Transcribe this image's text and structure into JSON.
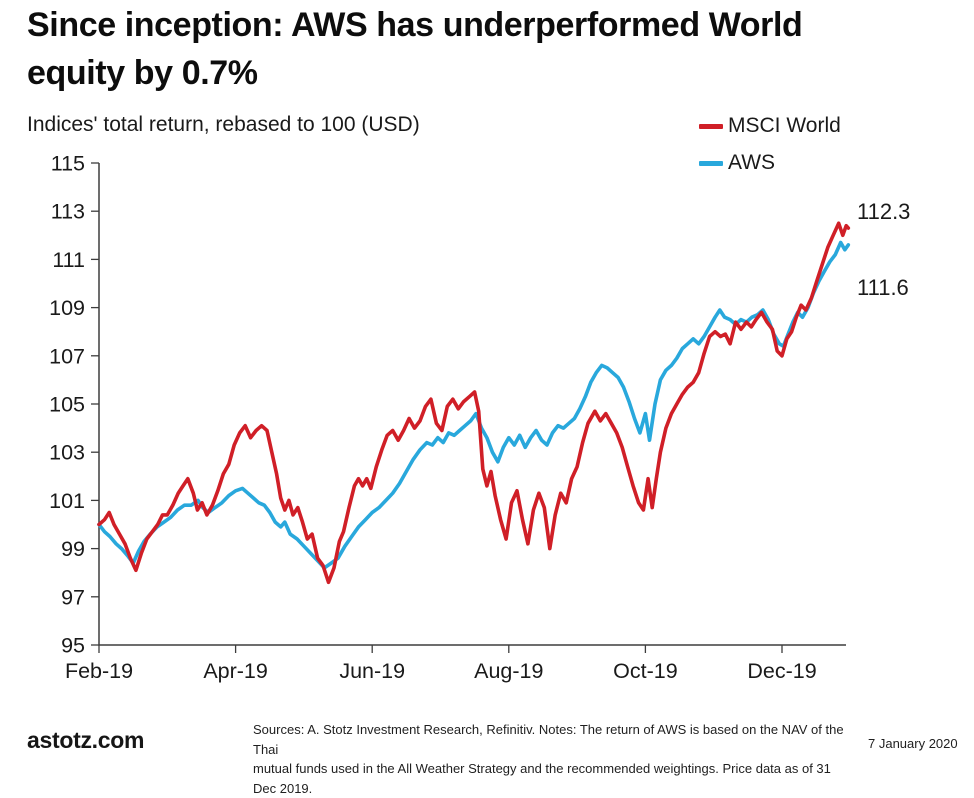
{
  "header": {
    "title_line1": "Since inception: AWS has underperformed World",
    "title_line2": "equity by 0.7%",
    "subtitle": "Indices' total return, rebased to 100 (USD)"
  },
  "legend": [
    {
      "label": "MSCI World",
      "color": "#d01f27"
    },
    {
      "label": "AWS",
      "color": "#29a8dc"
    }
  ],
  "chart_data": {
    "type": "line",
    "title": "Indices' total return, rebased to 100 (USD)",
    "grid": false,
    "legend_position": "top-right",
    "x_axis": {
      "unit": "months since Feb-2019",
      "tick_labels": [
        "Feb-19",
        "Apr-19",
        "Jun-19",
        "Aug-19",
        "Oct-19",
        "Dec-19"
      ],
      "tick_positions": [
        0,
        2,
        4,
        6,
        8,
        10
      ],
      "range": [
        0,
        10.97
      ]
    },
    "y_axis": {
      "ticks": [
        115,
        113,
        111,
        109,
        107,
        105,
        103,
        101,
        99,
        97,
        95
      ],
      "range": [
        95,
        115
      ]
    },
    "series": [
      {
        "name": "MSCI World",
        "color": "#d01f27",
        "end_label": "112.3",
        "final_value": 112.3,
        "points": [
          [
            0.0,
            100.0
          ],
          [
            0.08,
            100.2
          ],
          [
            0.15,
            100.5
          ],
          [
            0.22,
            100.0
          ],
          [
            0.3,
            99.6
          ],
          [
            0.38,
            99.2
          ],
          [
            0.46,
            98.6
          ],
          [
            0.54,
            98.1
          ],
          [
            0.62,
            98.8
          ],
          [
            0.7,
            99.4
          ],
          [
            0.78,
            99.7
          ],
          [
            0.86,
            100.0
          ],
          [
            0.93,
            100.4
          ],
          [
            1.0,
            100.4
          ],
          [
            1.08,
            100.8
          ],
          [
            1.16,
            101.3
          ],
          [
            1.23,
            101.6
          ],
          [
            1.3,
            101.9
          ],
          [
            1.38,
            101.3
          ],
          [
            1.44,
            100.6
          ],
          [
            1.51,
            100.9
          ],
          [
            1.58,
            100.4
          ],
          [
            1.66,
            100.8
          ],
          [
            1.74,
            101.4
          ],
          [
            1.82,
            102.1
          ],
          [
            1.9,
            102.5
          ],
          [
            1.98,
            103.3
          ],
          [
            2.06,
            103.8
          ],
          [
            2.14,
            104.1
          ],
          [
            2.22,
            103.6
          ],
          [
            2.3,
            103.9
          ],
          [
            2.38,
            104.1
          ],
          [
            2.46,
            103.9
          ],
          [
            2.53,
            103.0
          ],
          [
            2.6,
            102.1
          ],
          [
            2.66,
            101.1
          ],
          [
            2.72,
            100.6
          ],
          [
            2.78,
            101.0
          ],
          [
            2.84,
            100.4
          ],
          [
            2.91,
            100.7
          ],
          [
            2.98,
            100.1
          ],
          [
            3.05,
            99.4
          ],
          [
            3.12,
            99.6
          ],
          [
            3.2,
            98.6
          ],
          [
            3.28,
            98.3
          ],
          [
            3.36,
            97.6
          ],
          [
            3.44,
            98.2
          ],
          [
            3.52,
            99.3
          ],
          [
            3.58,
            99.7
          ],
          [
            3.66,
            100.7
          ],
          [
            3.74,
            101.6
          ],
          [
            3.8,
            101.9
          ],
          [
            3.86,
            101.6
          ],
          [
            3.92,
            101.9
          ],
          [
            3.98,
            101.5
          ],
          [
            4.06,
            102.4
          ],
          [
            4.14,
            103.1
          ],
          [
            4.22,
            103.7
          ],
          [
            4.3,
            103.9
          ],
          [
            4.38,
            103.5
          ],
          [
            4.46,
            103.9
          ],
          [
            4.54,
            104.4
          ],
          [
            4.62,
            104.0
          ],
          [
            4.7,
            104.3
          ],
          [
            4.78,
            104.9
          ],
          [
            4.86,
            105.2
          ],
          [
            4.94,
            104.2
          ],
          [
            5.02,
            103.9
          ],
          [
            5.1,
            104.9
          ],
          [
            5.18,
            105.2
          ],
          [
            5.26,
            104.8
          ],
          [
            5.34,
            105.1
          ],
          [
            5.42,
            105.3
          ],
          [
            5.5,
            105.5
          ],
          [
            5.56,
            104.7
          ],
          [
            5.62,
            102.3
          ],
          [
            5.68,
            101.6
          ],
          [
            5.74,
            102.2
          ],
          [
            5.8,
            101.2
          ],
          [
            5.88,
            100.2
          ],
          [
            5.96,
            99.4
          ],
          [
            6.04,
            100.9
          ],
          [
            6.12,
            101.4
          ],
          [
            6.2,
            100.2
          ],
          [
            6.28,
            99.2
          ],
          [
            6.36,
            100.6
          ],
          [
            6.44,
            101.3
          ],
          [
            6.52,
            100.7
          ],
          [
            6.6,
            99.0
          ],
          [
            6.68,
            100.4
          ],
          [
            6.76,
            101.3
          ],
          [
            6.84,
            100.9
          ],
          [
            6.92,
            101.9
          ],
          [
            7.0,
            102.4
          ],
          [
            7.08,
            103.4
          ],
          [
            7.16,
            104.2
          ],
          [
            7.26,
            104.7
          ],
          [
            7.34,
            104.3
          ],
          [
            7.42,
            104.6
          ],
          [
            7.5,
            104.2
          ],
          [
            7.58,
            103.8
          ],
          [
            7.66,
            103.2
          ],
          [
            7.74,
            102.4
          ],
          [
            7.82,
            101.6
          ],
          [
            7.9,
            100.9
          ],
          [
            7.97,
            100.6
          ],
          [
            8.04,
            101.9
          ],
          [
            8.1,
            100.7
          ],
          [
            8.16,
            101.9
          ],
          [
            8.22,
            103.0
          ],
          [
            8.3,
            104.0
          ],
          [
            8.38,
            104.6
          ],
          [
            8.46,
            105.0
          ],
          [
            8.54,
            105.4
          ],
          [
            8.62,
            105.7
          ],
          [
            8.7,
            105.9
          ],
          [
            8.78,
            106.3
          ],
          [
            8.86,
            107.1
          ],
          [
            8.94,
            107.8
          ],
          [
            9.02,
            108.0
          ],
          [
            9.1,
            107.8
          ],
          [
            9.17,
            107.9
          ],
          [
            9.24,
            107.5
          ],
          [
            9.32,
            108.4
          ],
          [
            9.4,
            108.1
          ],
          [
            9.48,
            108.4
          ],
          [
            9.55,
            108.2
          ],
          [
            9.62,
            108.5
          ],
          [
            9.7,
            108.8
          ],
          [
            9.78,
            108.4
          ],
          [
            9.86,
            108.1
          ],
          [
            9.93,
            107.2
          ],
          [
            10.0,
            107.0
          ],
          [
            10.07,
            107.7
          ],
          [
            10.14,
            108.0
          ],
          [
            10.21,
            108.6
          ],
          [
            10.28,
            109.1
          ],
          [
            10.35,
            108.9
          ],
          [
            10.43,
            109.4
          ],
          [
            10.51,
            110.1
          ],
          [
            10.59,
            110.8
          ],
          [
            10.67,
            111.5
          ],
          [
            10.75,
            112.0
          ],
          [
            10.83,
            112.5
          ],
          [
            10.89,
            112.0
          ],
          [
            10.94,
            112.4
          ],
          [
            10.97,
            112.3
          ]
        ]
      },
      {
        "name": "AWS",
        "color": "#29a8dc",
        "end_label": "111.6",
        "final_value": 111.6,
        "points": [
          [
            0.0,
            100.0
          ],
          [
            0.08,
            99.7
          ],
          [
            0.16,
            99.5
          ],
          [
            0.25,
            99.2
          ],
          [
            0.33,
            99.0
          ],
          [
            0.42,
            98.7
          ],
          [
            0.5,
            98.4
          ],
          [
            0.58,
            98.9
          ],
          [
            0.66,
            99.3
          ],
          [
            0.75,
            99.6
          ],
          [
            0.85,
            99.9
          ],
          [
            0.95,
            100.1
          ],
          [
            1.05,
            100.3
          ],
          [
            1.15,
            100.6
          ],
          [
            1.25,
            100.8
          ],
          [
            1.35,
            100.8
          ],
          [
            1.45,
            101.0
          ],
          [
            1.52,
            100.7
          ],
          [
            1.6,
            100.5
          ],
          [
            1.7,
            100.7
          ],
          [
            1.8,
            100.9
          ],
          [
            1.9,
            101.2
          ],
          [
            2.0,
            101.4
          ],
          [
            2.1,
            101.5
          ],
          [
            2.18,
            101.3
          ],
          [
            2.26,
            101.1
          ],
          [
            2.34,
            100.9
          ],
          [
            2.42,
            100.8
          ],
          [
            2.5,
            100.5
          ],
          [
            2.58,
            100.1
          ],
          [
            2.66,
            99.9
          ],
          [
            2.72,
            100.1
          ],
          [
            2.8,
            99.6
          ],
          [
            2.9,
            99.4
          ],
          [
            3.0,
            99.1
          ],
          [
            3.1,
            98.8
          ],
          [
            3.2,
            98.5
          ],
          [
            3.3,
            98.2
          ],
          [
            3.4,
            98.4
          ],
          [
            3.5,
            98.6
          ],
          [
            3.6,
            99.1
          ],
          [
            3.7,
            99.5
          ],
          [
            3.8,
            99.9
          ],
          [
            3.9,
            100.2
          ],
          [
            4.0,
            100.5
          ],
          [
            4.1,
            100.7
          ],
          [
            4.2,
            101.0
          ],
          [
            4.3,
            101.3
          ],
          [
            4.4,
            101.7
          ],
          [
            4.5,
            102.2
          ],
          [
            4.6,
            102.7
          ],
          [
            4.7,
            103.1
          ],
          [
            4.8,
            103.4
          ],
          [
            4.88,
            103.3
          ],
          [
            4.96,
            103.6
          ],
          [
            5.04,
            103.4
          ],
          [
            5.12,
            103.8
          ],
          [
            5.2,
            103.7
          ],
          [
            5.28,
            103.9
          ],
          [
            5.36,
            104.1
          ],
          [
            5.44,
            104.3
          ],
          [
            5.52,
            104.6
          ],
          [
            5.6,
            104.0
          ],
          [
            5.68,
            103.6
          ],
          [
            5.76,
            103.0
          ],
          [
            5.84,
            102.6
          ],
          [
            5.92,
            103.2
          ],
          [
            6.0,
            103.6
          ],
          [
            6.08,
            103.3
          ],
          [
            6.16,
            103.7
          ],
          [
            6.24,
            103.2
          ],
          [
            6.32,
            103.6
          ],
          [
            6.4,
            103.9
          ],
          [
            6.48,
            103.5
          ],
          [
            6.56,
            103.3
          ],
          [
            6.64,
            103.8
          ],
          [
            6.72,
            104.1
          ],
          [
            6.8,
            104.0
          ],
          [
            6.88,
            104.2
          ],
          [
            6.96,
            104.4
          ],
          [
            7.04,
            104.8
          ],
          [
            7.12,
            105.3
          ],
          [
            7.2,
            105.9
          ],
          [
            7.28,
            106.3
          ],
          [
            7.36,
            106.6
          ],
          [
            7.44,
            106.5
          ],
          [
            7.52,
            106.3
          ],
          [
            7.6,
            106.1
          ],
          [
            7.68,
            105.7
          ],
          [
            7.76,
            105.1
          ],
          [
            7.84,
            104.4
          ],
          [
            7.92,
            103.8
          ],
          [
            8.0,
            104.6
          ],
          [
            8.06,
            103.5
          ],
          [
            8.14,
            105.0
          ],
          [
            8.22,
            106.0
          ],
          [
            8.3,
            106.4
          ],
          [
            8.38,
            106.6
          ],
          [
            8.46,
            106.9
          ],
          [
            8.54,
            107.3
          ],
          [
            8.62,
            107.5
          ],
          [
            8.7,
            107.7
          ],
          [
            8.78,
            107.5
          ],
          [
            8.86,
            107.8
          ],
          [
            8.94,
            108.2
          ],
          [
            9.02,
            108.6
          ],
          [
            9.09,
            108.9
          ],
          [
            9.16,
            108.6
          ],
          [
            9.24,
            108.5
          ],
          [
            9.32,
            108.3
          ],
          [
            9.4,
            108.5
          ],
          [
            9.48,
            108.4
          ],
          [
            9.56,
            108.6
          ],
          [
            9.64,
            108.7
          ],
          [
            9.72,
            108.9
          ],
          [
            9.8,
            108.5
          ],
          [
            9.88,
            107.9
          ],
          [
            9.96,
            107.5
          ],
          [
            10.02,
            107.4
          ],
          [
            10.09,
            107.9
          ],
          [
            10.16,
            108.4
          ],
          [
            10.23,
            108.8
          ],
          [
            10.3,
            108.6
          ],
          [
            10.38,
            109.0
          ],
          [
            10.46,
            109.6
          ],
          [
            10.54,
            110.1
          ],
          [
            10.62,
            110.5
          ],
          [
            10.7,
            110.9
          ],
          [
            10.78,
            111.2
          ],
          [
            10.86,
            111.7
          ],
          [
            10.92,
            111.4
          ],
          [
            10.97,
            111.6
          ]
        ]
      }
    ]
  },
  "footer": {
    "brand": "astotz.com",
    "sources_line1": "Sources: A. Stotz Investment Research, Refinitiv. Notes: The return of AWS is based on the NAV of the Thai",
    "sources_line2": "mutual funds used in the All Weather Strategy and the recommended weightings. Price data as of 31 Dec 2019.",
    "date": "7 January 2020"
  }
}
